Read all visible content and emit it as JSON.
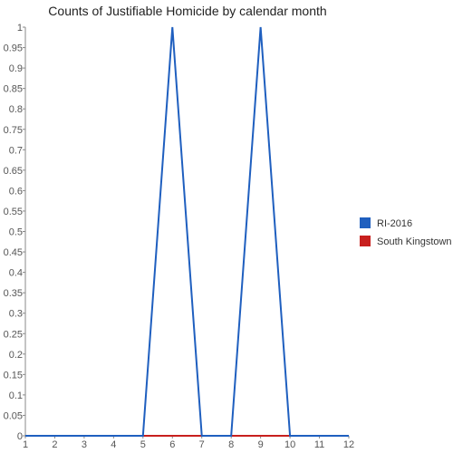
{
  "chart_data": {
    "type": "line",
    "title": "Counts of Justifiable Homicide by calendar month",
    "xlabel": "",
    "ylabel": "",
    "x": [
      1,
      2,
      3,
      4,
      5,
      6,
      7,
      8,
      9,
      10,
      11,
      12
    ],
    "xlim": [
      1,
      12
    ],
    "ylim": [
      0,
      1
    ],
    "y_ticks": [
      "0",
      "0.05",
      "0.1",
      "0.15",
      "0.2",
      "0.25",
      "0.3",
      "0.35",
      "0.4",
      "0.45",
      "0.5",
      "0.55",
      "0.6",
      "0.65",
      "0.7",
      "0.75",
      "0.8",
      "0.85",
      "0.9",
      "0.95",
      "1"
    ],
    "x_ticks": [
      "1",
      "2",
      "3",
      "4",
      "5",
      "6",
      "7",
      "8",
      "9",
      "10",
      "11",
      "12"
    ],
    "grid": false,
    "legend_position": "right",
    "series": [
      {
        "name": "RI-2016",
        "color": "#1f5fbf",
        "values": [
          0,
          0,
          0,
          0,
          0,
          1,
          0,
          0,
          1,
          0,
          0,
          0
        ]
      },
      {
        "name": "South Kingstown",
        "color": "#c8201e",
        "values": [
          0,
          0,
          0,
          0,
          0,
          0,
          0,
          0,
          0,
          0,
          0,
          0
        ]
      }
    ]
  }
}
